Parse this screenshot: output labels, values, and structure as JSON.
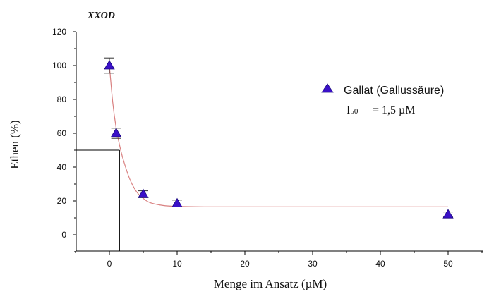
{
  "chart_data": {
    "type": "scatter",
    "title": "XXOD",
    "xlabel": "Menge im Ansatz (µM)",
    "ylabel": "Ethen (%)",
    "xlim": [
      -5,
      55
    ],
    "ylim": [
      -10,
      120
    ],
    "xticks": [
      0,
      10,
      20,
      30,
      40,
      50
    ],
    "yticks": [
      0,
      20,
      40,
      60,
      80,
      100,
      120
    ],
    "grid": false,
    "legend_position": "top-right",
    "series": [
      {
        "name": "Gallat (Gallussäure)",
        "marker": "triangle",
        "color": "#3a10c8",
        "x": [
          0,
          1,
          5,
          10,
          50
        ],
        "y": [
          100,
          60,
          24,
          18.5,
          12
        ],
        "error": [
          4.5,
          3,
          2,
          2,
          1.5
        ]
      }
    ],
    "fit_curve": {
      "color": "#d98080",
      "x": [
        0,
        0.5,
        1,
        1.5,
        2,
        3,
        4,
        5,
        6,
        8,
        10,
        14,
        20,
        30,
        40,
        50
      ],
      "y": [
        100,
        78,
        63,
        53,
        45,
        33,
        25.5,
        21.5,
        19,
        17.3,
        16.8,
        16.5,
        16.5,
        16.5,
        16.5,
        16.5
      ]
    },
    "i50_guide": {
      "x": 1.5,
      "y": 50
    },
    "annotation": {
      "i_symbol": "I",
      "i_sub": "50",
      "i_value": "= 1,5 µM"
    }
  }
}
